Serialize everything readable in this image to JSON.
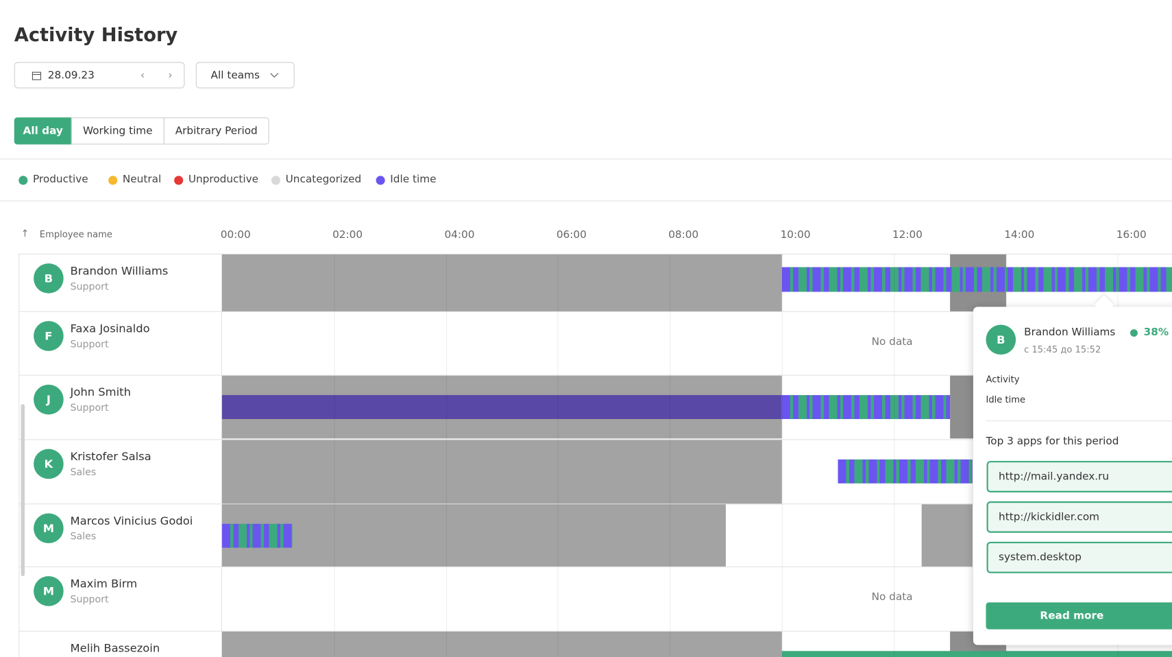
{
  "header": {
    "title": "Activity History",
    "date": "28.09.23",
    "team_filter": "All teams"
  },
  "tabs": [
    "All day",
    "Working time",
    "Arbitrary Period"
  ],
  "legend": [
    {
      "label": "Productive",
      "color": "#3daa7d"
    },
    {
      "label": "Neutral",
      "color": "#f5b82e"
    },
    {
      "label": "Unproductive",
      "color": "#e53935"
    },
    {
      "label": "Uncategorized",
      "color": "#d9d9d9"
    },
    {
      "label": "Idle time",
      "color": "#6b55f0"
    }
  ],
  "table": {
    "column_header": "Employee name",
    "time_ticks": [
      "00:00",
      "02:00",
      "04:00",
      "06:00",
      "08:00",
      "10:00",
      "12:00",
      "14:00",
      "16:00"
    ],
    "rows": [
      {
        "initial": "B",
        "name": "Brandon Williams",
        "team": "Support"
      },
      {
        "initial": "F",
        "name": "Faxa Josinaldo",
        "team": "Support",
        "note": "No data"
      },
      {
        "initial": "J",
        "name": "John Smith",
        "team": "Support"
      },
      {
        "initial": "K",
        "name": "Kristofer Salsa",
        "team": "Sales"
      },
      {
        "initial": "M",
        "name": "Marcos Vinicius Godoi",
        "team": "Sales"
      },
      {
        "initial": "M",
        "name": "Maxim Birm",
        "team": "Support",
        "note": "No data"
      },
      {
        "name": "Melih Bassezoin"
      }
    ]
  },
  "popup": {
    "avatar": "B",
    "name": "Brandon Williams",
    "percent": "38%",
    "period": "с 15:45 до 15:52",
    "labels": [
      "Activity",
      "Idle time"
    ],
    "apps_title": "Top 3 apps for this period",
    "apps": [
      "http://mail.yandex.ru",
      "http://kickidler.com",
      "system.desktop"
    ],
    "button": "Read more"
  }
}
